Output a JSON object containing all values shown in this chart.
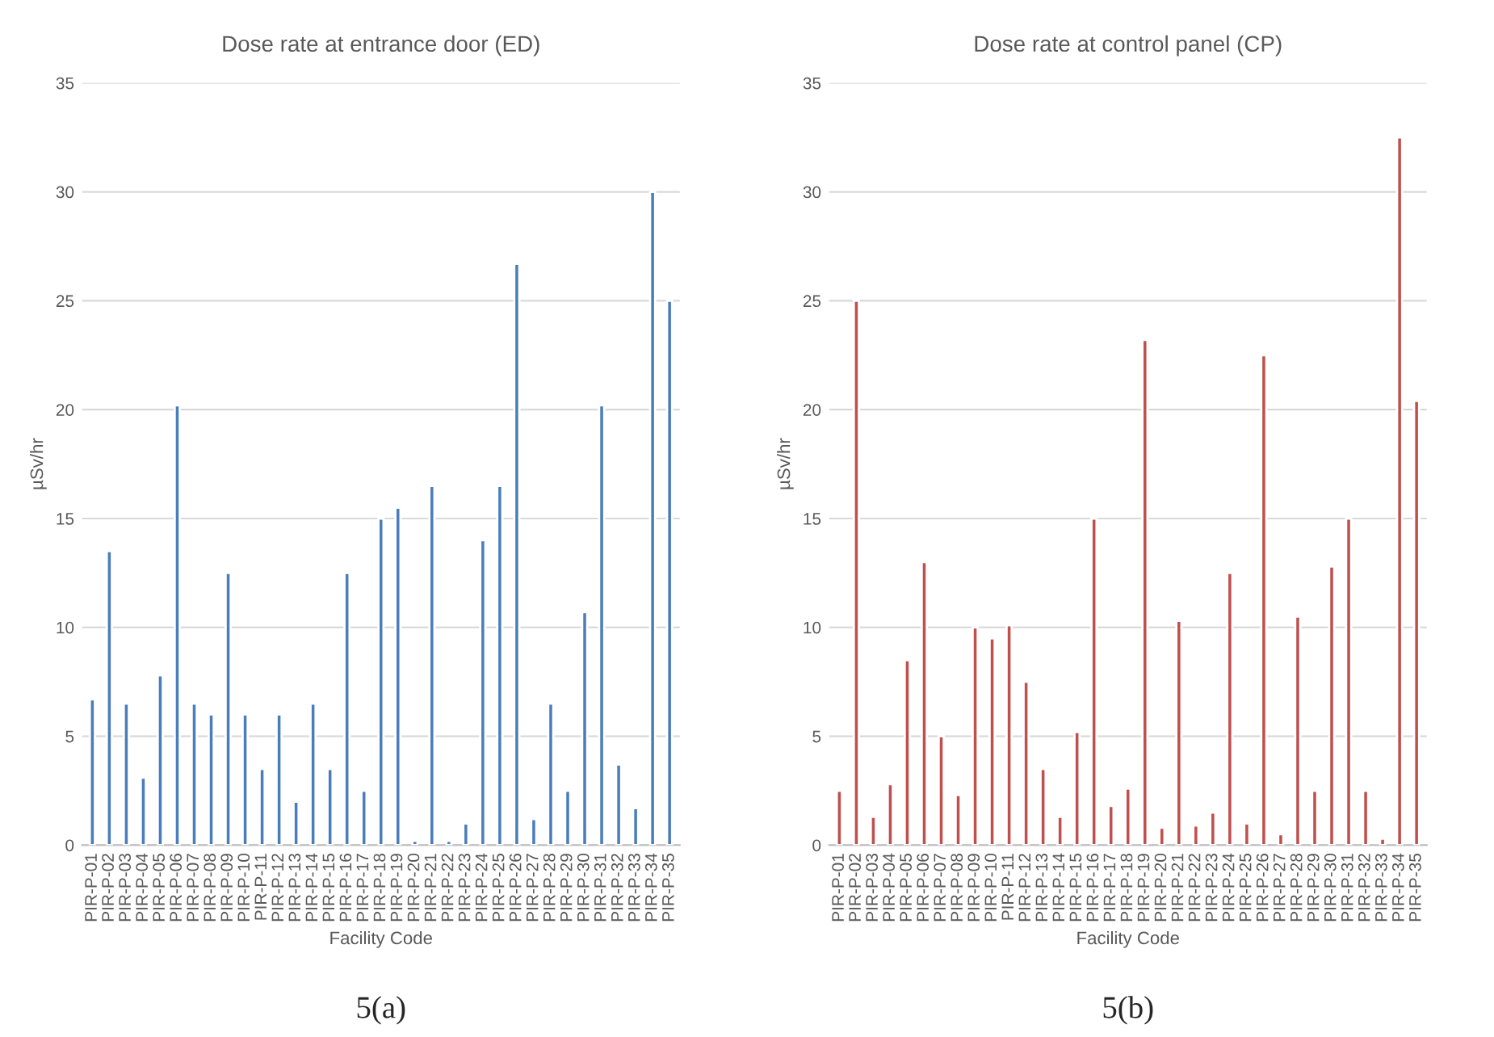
{
  "chart_data": [
    {
      "type": "bar",
      "title": "Dose rate at entrance door (ED)",
      "xlabel": "Facility Code",
      "ylabel": "µSv/hr",
      "categories": [
        "PIR-P-01",
        "PIR-P-02",
        "PIR-P-03",
        "PIR-P-04",
        "PIR-P-05",
        "PIR-P-06",
        "PIR-P-07",
        "PIR-P-08",
        "PIR-P-09",
        "PIR-P-10",
        "PIR-P-11",
        "PIR-P-12",
        "PIR-P-13",
        "PIR-P-14",
        "PIR-P-15",
        "PIR-P-16",
        "PIR-P-17",
        "PIR-P-18",
        "PIR-P-19",
        "PIR-P-20",
        "PIR-P-21",
        "PIR-P-22",
        "PIR-P-23",
        "PIR-P-24",
        "PIR-P-25",
        "PIR-P-26",
        "PIR-P-27",
        "PIR-P-28",
        "PIR-P-29",
        "PIR-P-30",
        "PIR-P-31",
        "PIR-P-32",
        "PIR-P-33",
        "PIR-P-34",
        "PIR-P-35"
      ],
      "series": [
        {
          "color": "#4a7ebb",
          "values": [
            6.7,
            13.5,
            6.5,
            3.1,
            7.8,
            20.2,
            6.5,
            6.0,
            12.5,
            6.0,
            3.5,
            6.0,
            2.0,
            6.5,
            3.5,
            12.5,
            2.5,
            15.0,
            15.5,
            0.2,
            16.5,
            0.2,
            1.0,
            14.0,
            16.5,
            26.7,
            1.2,
            6.5,
            2.5,
            10.7,
            20.2,
            3.7,
            1.7,
            30.0,
            25.0
          ]
        }
      ],
      "ylim": [
        0,
        35
      ],
      "yticks": [
        0,
        5,
        10,
        15,
        20,
        25,
        30,
        35
      ],
      "grid": "y",
      "annotations": [
        "5(a)"
      ]
    },
    {
      "type": "bar",
      "title": "Dose rate at control panel (CP)",
      "xlabel": "Facility Code",
      "ylabel": "µSv/hr",
      "categories": [
        "PIR-P-01",
        "PIR-P-02",
        "PIR-P-03",
        "PIR-P-04",
        "PIR-P-05",
        "PIR-P-06",
        "PIR-P-07",
        "PIR-P-08",
        "PIR-P-09",
        "PIR-P-10",
        "PIR-P-11",
        "PIR-P-12",
        "PIR-P-13",
        "PIR-P-14",
        "PIR-P-15",
        "PIR-P-16",
        "PIR-P-17",
        "PIR-P-18",
        "PIR-P-19",
        "PIR-P-20",
        "PIR-P-21",
        "PIR-P-22",
        "PIR-P-23",
        "PIR-P-24",
        "PIR-P-25",
        "PIR-P-26",
        "PIR-P-27",
        "PIR-P-28",
        "PIR-P-29",
        "PIR-P-30",
        "PIR-P-31",
        "PIR-P-32",
        "PIR-P-33",
        "PIR-P-34",
        "PIR-P-35"
      ],
      "series": [
        {
          "color": "#c0504d",
          "values": [
            2.5,
            25.0,
            1.3,
            2.8,
            8.5,
            13.0,
            5.0,
            2.3,
            10.0,
            9.5,
            10.1,
            7.5,
            3.5,
            1.3,
            5.2,
            15.0,
            1.8,
            2.6,
            23.2,
            0.8,
            10.3,
            0.9,
            1.5,
            12.5,
            1.0,
            22.5,
            0.5,
            10.5,
            2.5,
            12.8,
            15.0,
            2.5,
            0.3,
            32.5,
            20.4
          ]
        }
      ],
      "ylim": [
        0,
        35
      ],
      "yticks": [
        0,
        5,
        10,
        15,
        20,
        25,
        30,
        35
      ],
      "grid": "y",
      "annotations": [
        "5(b)"
      ]
    }
  ]
}
